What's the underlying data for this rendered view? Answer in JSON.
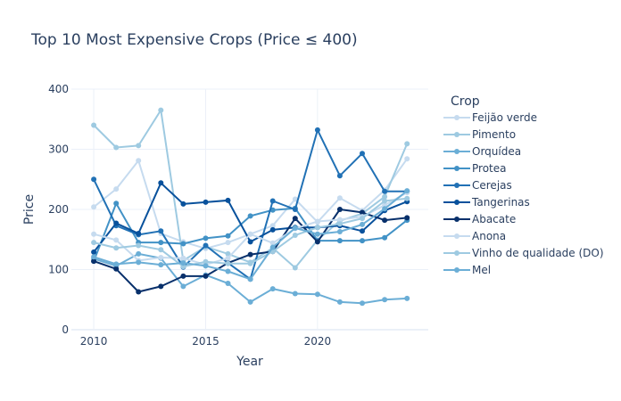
{
  "chart_data": {
    "type": "line",
    "title": "Top 10 Most Expensive Crops (Price ≤ 400)",
    "xlabel": "Year",
    "ylabel": "Price",
    "xlim": [
      2009.0,
      2024.95
    ],
    "ylim": [
      0,
      400
    ],
    "x_ticks": [
      2010,
      2015,
      2020
    ],
    "y_ticks": [
      0,
      100,
      200,
      300,
      400
    ],
    "grid": true,
    "legend_title": "Crop",
    "legend_position": "right",
    "x": [
      2010,
      2011,
      2012,
      2013,
      2014,
      2015,
      2016,
      2017,
      2018,
      2019,
      2020,
      2021,
      2022,
      2023,
      2024
    ],
    "series": [
      {
        "name": "Feijão verde",
        "color": "#c6dbef",
        "values": [
          204,
          234,
          281,
          160,
          146,
          135,
          145,
          159,
          173,
          217,
          179,
          219,
          198,
          232,
          284
        ]
      },
      {
        "name": "Pimento",
        "color": "#9ecae1",
        "values": [
          340,
          303,
          306,
          365,
          115,
          138,
          126,
          112,
          136,
          103,
          149,
          181,
          193,
          221,
          309
        ]
      },
      {
        "name": "Orquídea",
        "color": "#6baed6",
        "values": [
          118,
          106,
          126,
          119,
          72,
          91,
          77,
          46,
          68,
          60,
          59,
          46,
          44,
          50,
          52
        ]
      },
      {
        "name": "Protea",
        "color": "#4292c6",
        "values": [
          114,
          210,
          145,
          145,
          143,
          152,
          156,
          189,
          199,
          202,
          148,
          148,
          148,
          153,
          182
        ]
      },
      {
        "name": "Cerejas",
        "color": "#2171b5",
        "values": [
          250,
          173,
          158,
          164,
          104,
          140,
          111,
          84,
          214,
          200,
          332,
          256,
          293,
          230,
          230
        ]
      },
      {
        "name": "Tangerinas",
        "color": "#08519c",
        "values": [
          129,
          177,
          160,
          244,
          209,
          212,
          215,
          146,
          166,
          170,
          170,
          173,
          164,
          198,
          213
        ]
      },
      {
        "name": "Abacate",
        "color": "#08306b",
        "values": [
          114,
          101,
          63,
          72,
          89,
          89,
          111,
          125,
          130,
          185,
          146,
          200,
          195,
          182,
          186
        ]
      },
      {
        "name": "Anona",
        "color": "#c6dbef",
        "values": [
          159,
          149,
          115,
          120,
          119,
          108,
          119,
          159,
          144,
          168,
          180,
          183,
          188,
          207,
          228
        ]
      },
      {
        "name": "Vinho de qualidade (DO)",
        "color": "#9ecae1",
        "values": [
          145,
          136,
          140,
          133,
          105,
          113,
          110,
          110,
          130,
          157,
          170,
          176,
          185,
          214,
          218
        ]
      },
      {
        "name": "Mel",
        "color": "#6baed6",
        "values": [
          121,
          109,
          112,
          108,
          111,
          106,
          97,
          84,
          137,
          169,
          159,
          163,
          175,
          201,
          231
        ]
      }
    ]
  }
}
